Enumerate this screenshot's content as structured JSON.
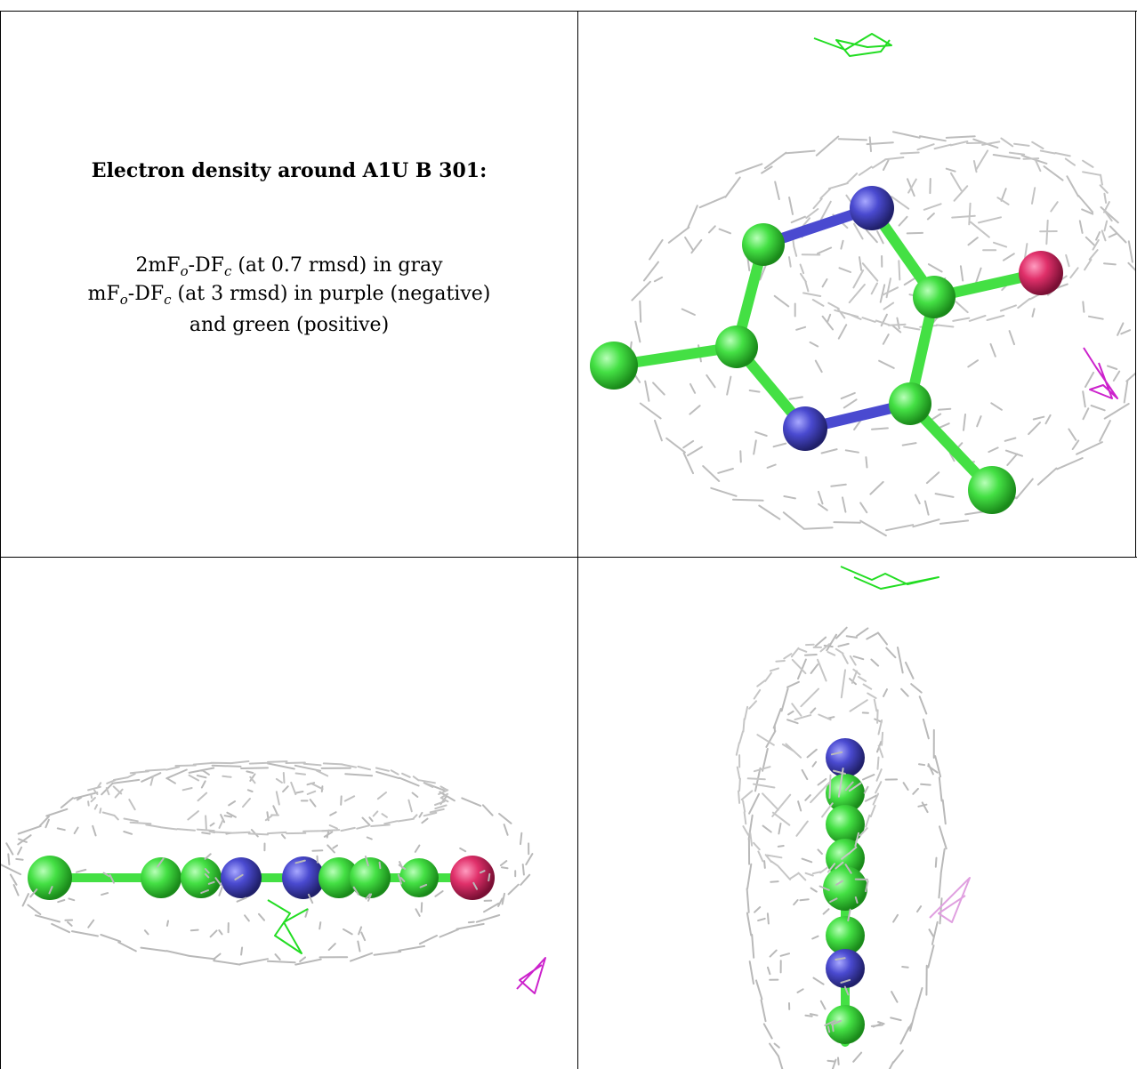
{
  "caption": {
    "title": "Electron density around A1U B 301:",
    "line1": {
      "pre": "2mF",
      "sub1": "o",
      "mid": "-DF",
      "sub2": "c",
      "post": " (at 0.7 rmsd) in gray"
    },
    "line2": {
      "pre": "mF",
      "sub1": "o",
      "mid": "-DF",
      "sub2": "c",
      "post": " (at 3 rmsd) in purple (negative)"
    },
    "line3": "and green (positive)"
  },
  "colors": {
    "mesh_2fofc": "#b8b8b8",
    "mesh_pos": "#22dd22",
    "mesh_neg": "#cc22cc",
    "carbon": "#44e044",
    "nitrogen": "#4a4ad0",
    "oxygen": "#e0306a"
  }
}
